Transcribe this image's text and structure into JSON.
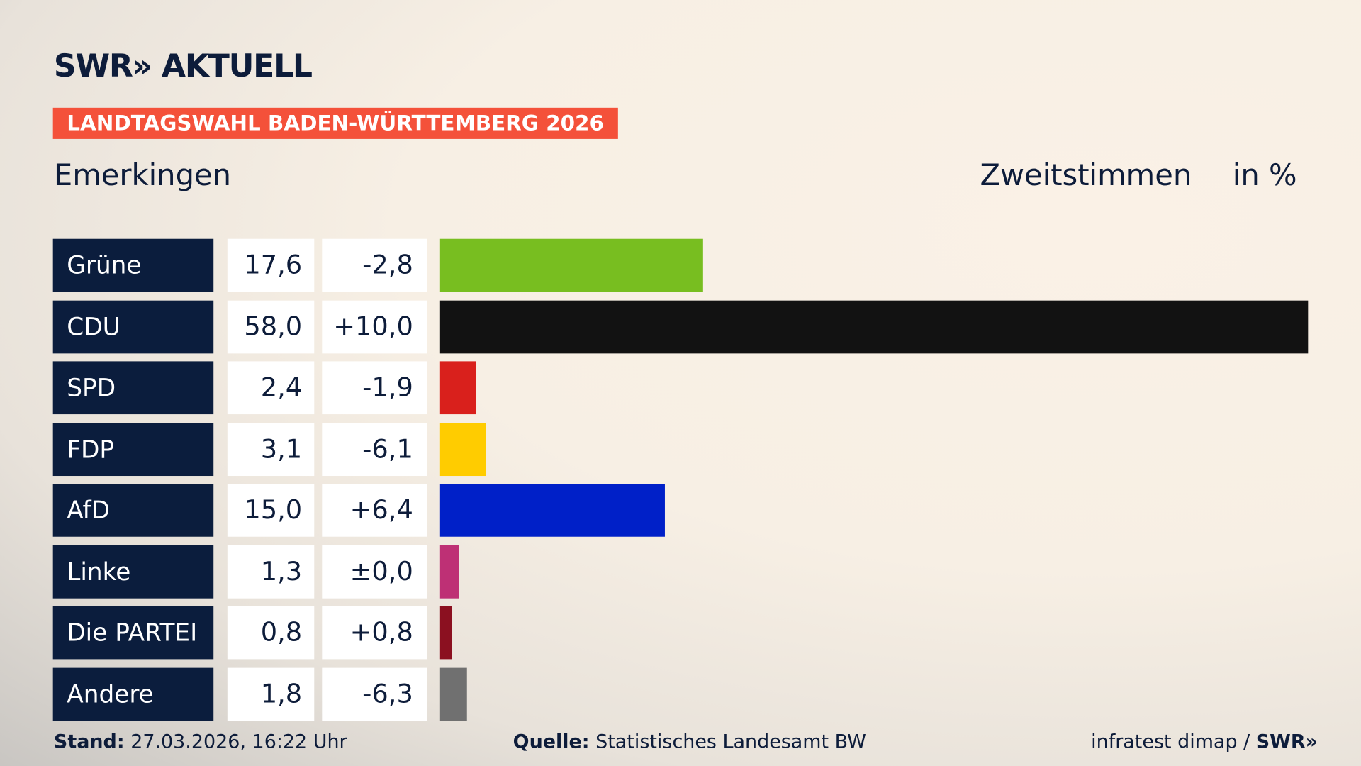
{
  "header": {
    "logo": "SWR» AKTUELL",
    "badge": "LANDTAGSWAHL BADEN-WÜRTTEMBERG 2026",
    "location": "Emerkingen",
    "vote_type": "Zweitstimmen",
    "unit": "in %"
  },
  "chart_data": {
    "type": "bar",
    "orientation": "horizontal",
    "categories": [
      "Grüne",
      "CDU",
      "SPD",
      "FDP",
      "AfD",
      "Linke",
      "Die PARTEI",
      "Andere"
    ],
    "values": [
      17.6,
      58.0,
      2.4,
      3.1,
      15.0,
      1.3,
      0.8,
      1.8
    ],
    "value_labels": [
      "17,6",
      "58,0",
      "2,4",
      "3,1",
      "15,0",
      "1,3",
      "0,8",
      "1,8"
    ],
    "diff_labels": [
      "-2,8",
      "+10,0",
      "-1,9",
      "-6,1",
      "+6,4",
      "±0,0",
      "+0,8",
      "-6,3"
    ],
    "colors": [
      "#78be20",
      "#121212",
      "#d9201c",
      "#ffcc00",
      "#0020c8",
      "#be3075",
      "#8b1020",
      "#707070"
    ],
    "xlim": [
      0,
      58
    ]
  },
  "footer": {
    "stand_label": "Stand:",
    "stand_value": "27.03.2026, 16:22 Uhr",
    "source_label": "Quelle:",
    "source_value": "Statistisches Landesamt BW",
    "credit": "infratest dimap /",
    "credit_logo": "SWR»"
  }
}
